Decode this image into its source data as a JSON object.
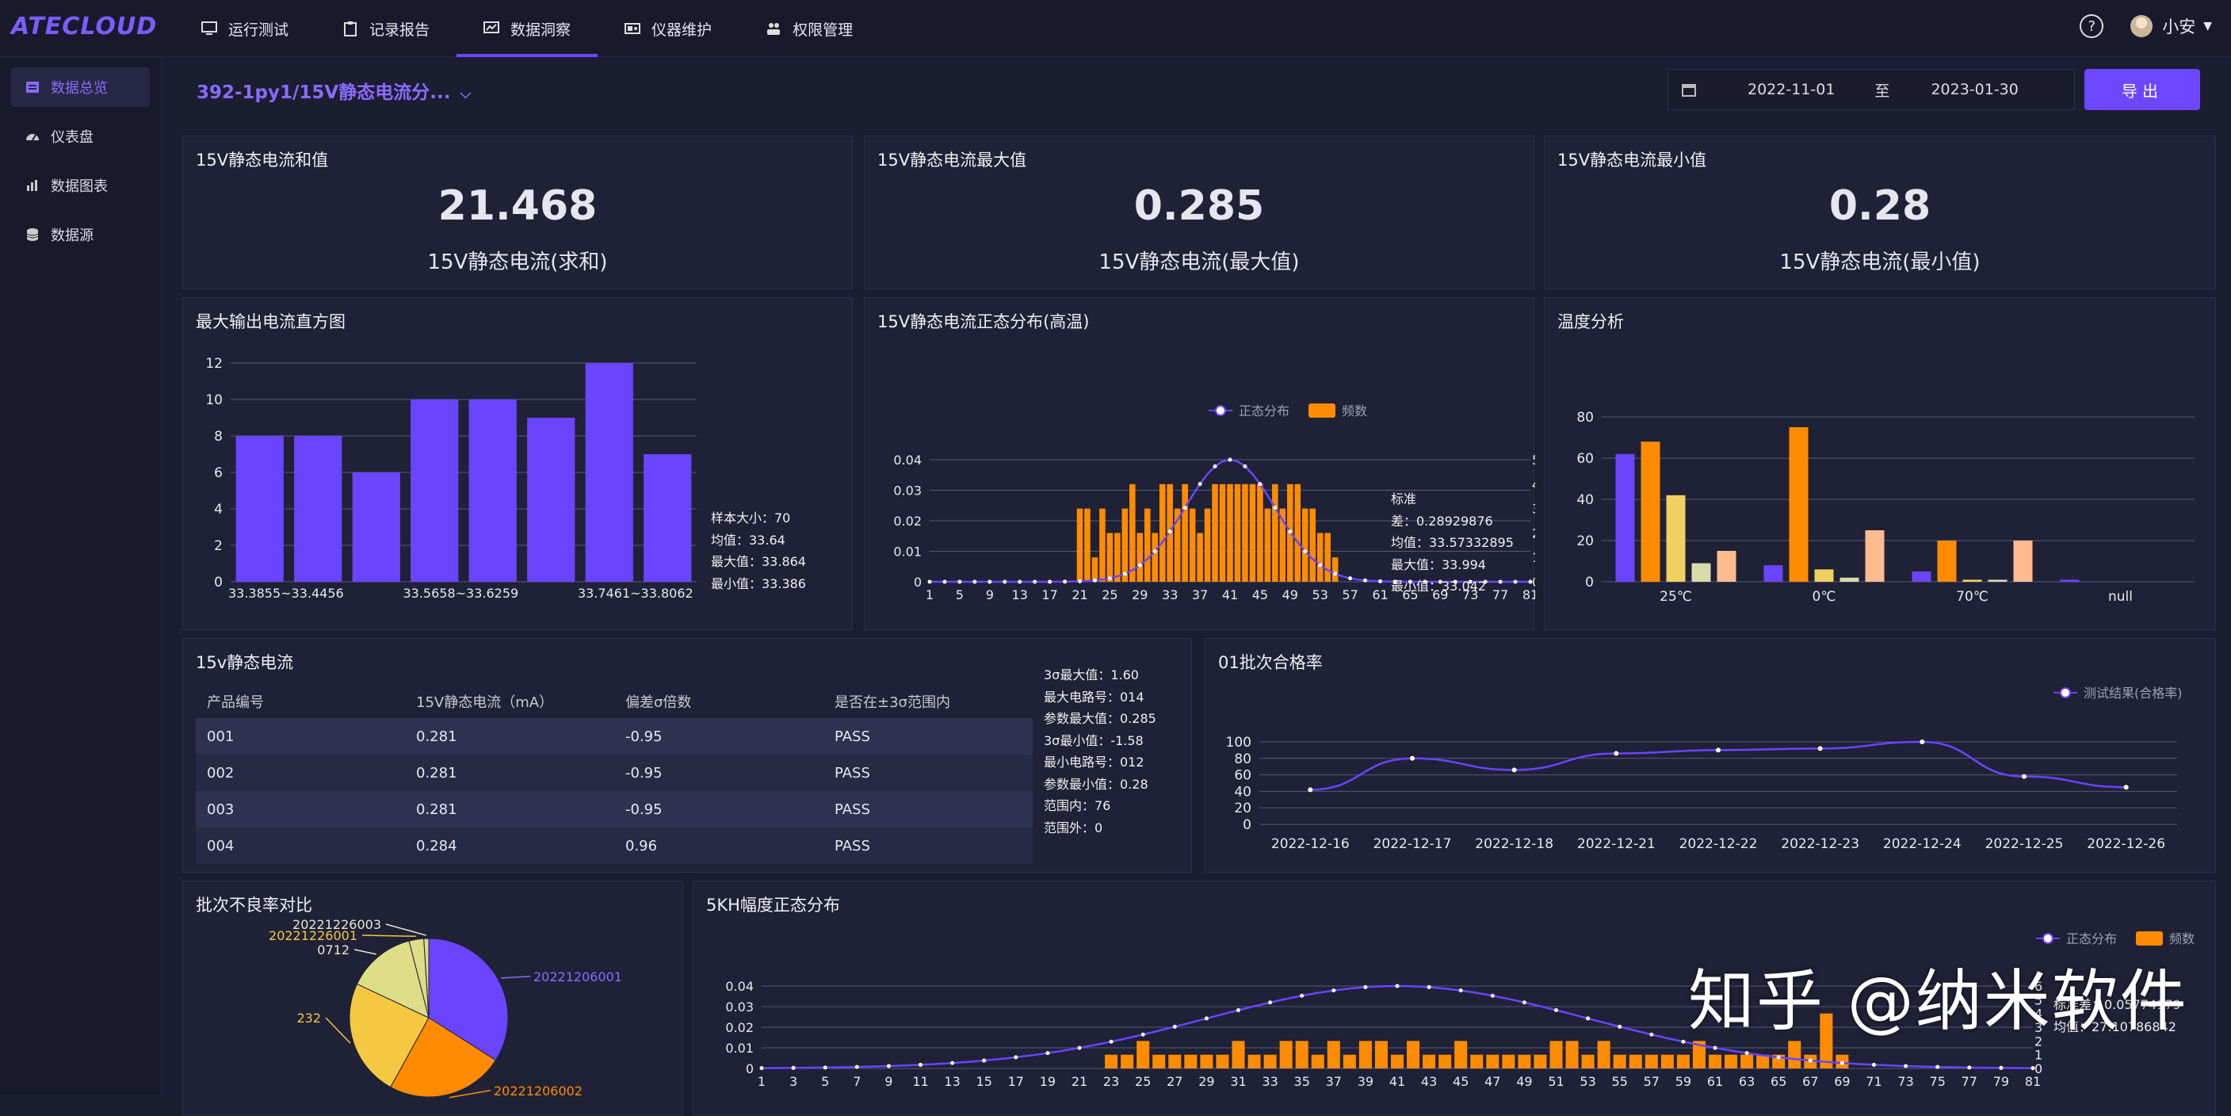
{
  "app": {
    "logo": "ATECLOUD"
  },
  "nav": [
    {
      "label": "运行测试",
      "icon": "monitor-icon",
      "active": false
    },
    {
      "label": "记录报告",
      "icon": "clipboard-icon",
      "active": false
    },
    {
      "label": "数据洞察",
      "icon": "chart-screen-icon",
      "active": true
    },
    {
      "label": "仪器维护",
      "icon": "instrument-icon",
      "active": false
    },
    {
      "label": "权限管理",
      "icon": "users-icon",
      "active": false
    }
  ],
  "user": {
    "name": "小安",
    "help": "?"
  },
  "sidebar": [
    {
      "label": "数据总览",
      "icon": "overview-icon",
      "active": true
    },
    {
      "label": "仪表盘",
      "icon": "dashboard-icon",
      "active": false
    },
    {
      "label": "数据图表",
      "icon": "bar-chart-icon",
      "active": false
    },
    {
      "label": "数据源",
      "icon": "database-icon",
      "active": false
    }
  ],
  "header": {
    "crumb": "392-1py1/15V静态电流分...",
    "date_from": "2022-11-01",
    "date_sep": "至",
    "date_to": "2023-01-30",
    "export": "导出"
  },
  "kpis": [
    {
      "title": "15V静态电流和值",
      "value": "21.468",
      "sub": "15V静态电流(求和)"
    },
    {
      "title": "15V静态电流最大值",
      "value": "0.285",
      "sub": "15V静态电流(最大值)"
    },
    {
      "title": "15V静态电流最小值",
      "value": "0.28",
      "sub": "15V静态电流(最小值)"
    }
  ],
  "hist_panel": {
    "title": "最大输出电流直方图",
    "stats": [
      "样本大小：70",
      "均值：33.64",
      "最大值：33.864",
      "最小值：33.386"
    ]
  },
  "normal_panel": {
    "title": "15V静态电流正态分布(高温)",
    "stats": [
      "标准",
      "差：0.28929876",
      "均值：33.57332895",
      "最大值：33.994",
      "最小值：33.042"
    ]
  },
  "temp_panel": {
    "title": "温度分析"
  },
  "table_panel": {
    "title": "15v静态电流",
    "columns": [
      "产品编号",
      "15V静态电流（mA）",
      "偏差σ倍数",
      "是否在±3σ范围内"
    ],
    "rows": [
      [
        "001",
        "0.281",
        "-0.95",
        "PASS"
      ],
      [
        "002",
        "0.281",
        "-0.95",
        "PASS"
      ],
      [
        "003",
        "0.281",
        "-0.95",
        "PASS"
      ],
      [
        "004",
        "0.284",
        "0.96",
        "PASS"
      ]
    ],
    "stats": [
      "3σ最大值：1.60",
      "最大电路号：014",
      "参数最大值：0.285",
      "3σ最小值：-1.58",
      "最小电路号：012",
      "参数最小值：0.28",
      "范围内：76",
      "范围外：0"
    ]
  },
  "pass_panel": {
    "title": "01批次合格率"
  },
  "pie_panel": {
    "title": "批次不良率对比"
  },
  "normal2_panel": {
    "title": "5KH幅度正态分布",
    "stats": [
      "标准差：0.05774179",
      "均值：27.10786842"
    ]
  },
  "watermark": "知乎 @纳米软件",
  "chart_data": [
    {
      "type": "bar",
      "title": "最大输出电流直方图",
      "categories": [
        "33.3855~33.4456",
        "",
        "",
        "33.5658~33.6259",
        "",
        "",
        "33.7461~33.8062",
        ""
      ],
      "values": [
        8,
        8,
        6,
        10,
        10,
        9,
        12,
        7
      ],
      "ylim": [
        0,
        12
      ],
      "yticks": [
        0,
        2,
        4,
        6,
        8,
        10,
        12
      ],
      "color": "#6a44ff"
    },
    {
      "type": "bar",
      "title": "15V静态电流正态分布(高温)",
      "legend": [
        "正态分布",
        "频数"
      ],
      "x_ticks": [
        "1",
        "5",
        "9",
        "13",
        "17",
        "21",
        "25",
        "29",
        "33",
        "37",
        "41",
        "45",
        "49",
        "53",
        "57",
        "61",
        "65",
        "69",
        "73",
        "77",
        "81"
      ],
      "x_count": 81,
      "bars": [
        [
          21,
          3
        ],
        [
          22,
          3
        ],
        [
          23,
          1
        ],
        [
          24,
          3
        ],
        [
          25,
          2
        ],
        [
          26,
          2
        ],
        [
          27,
          3
        ],
        [
          28,
          4
        ],
        [
          29,
          2
        ],
        [
          30,
          3
        ],
        [
          31,
          2
        ],
        [
          32,
          4
        ],
        [
          33,
          4
        ],
        [
          34,
          3
        ],
        [
          35,
          4
        ],
        [
          36,
          3
        ],
        [
          37,
          2
        ],
        [
          38,
          3
        ],
        [
          39,
          4
        ],
        [
          40,
          4
        ],
        [
          41,
          4
        ],
        [
          42,
          4
        ],
        [
          43,
          4
        ],
        [
          44,
          4
        ],
        [
          45,
          4
        ],
        [
          46,
          3
        ],
        [
          47,
          4
        ],
        [
          48,
          3
        ],
        [
          49,
          4
        ],
        [
          50,
          4
        ],
        [
          51,
          3
        ],
        [
          52,
          3
        ],
        [
          53,
          2
        ],
        [
          54,
          2
        ],
        [
          55,
          1
        ]
      ],
      "curve_peak": 0.04,
      "curve_center": 41,
      "curve_sigma": 6,
      "ylim_left": [
        0,
        0.04
      ],
      "yticks_left": [
        "0",
        "0.01",
        "0.02",
        "0.03",
        "0.04"
      ],
      "ylim_right": [
        0,
        5
      ],
      "yticks_right": [
        "0",
        "1",
        "2",
        "3",
        "4",
        "5"
      ],
      "colors": {
        "bar": "#ff8c00",
        "curve": "#6a44ff"
      }
    },
    {
      "type": "bar",
      "title": "温度分析",
      "categories": [
        "25℃",
        "0℃",
        "70℃",
        "null"
      ],
      "series": [
        {
          "values": [
            62,
            8,
            5,
            1
          ],
          "color": "#6a44ff"
        },
        {
          "values": [
            68,
            75,
            20,
            0
          ],
          "color": "#ff8c00"
        },
        {
          "values": [
            42,
            6,
            1,
            0
          ],
          "color": "#f0d060"
        },
        {
          "values": [
            9,
            2,
            1,
            0
          ],
          "color": "#d8dca8"
        },
        {
          "values": [
            15,
            25,
            20,
            0
          ],
          "color": "#ffbb90"
        }
      ],
      "ylim": [
        0,
        80
      ],
      "yticks": [
        0,
        20,
        40,
        60,
        80
      ]
    },
    {
      "type": "line",
      "title": "01批次合格率",
      "legend": [
        "测试结果(合格率)"
      ],
      "categories": [
        "2022-12-16",
        "2022-12-17",
        "2022-12-18",
        "2022-12-21",
        "2022-12-22",
        "2022-12-23",
        "2022-12-24",
        "2022-12-25",
        "2022-12-26"
      ],
      "values": [
        42,
        80,
        66,
        86,
        90,
        92,
        100,
        58,
        45
      ],
      "ylim": [
        0,
        100
      ],
      "yticks": [
        0,
        20,
        40,
        60,
        80,
        100
      ],
      "color": "#6a44ff"
    },
    {
      "type": "pie",
      "title": "批次不良率对比",
      "slices": [
        {
          "label": "20221206001",
          "value": 34,
          "color": "#6a44ff"
        },
        {
          "label": "20221206002",
          "value": 24,
          "color": "#ff8c00"
        },
        {
          "label": "232",
          "value": 24,
          "color": "#f5c842"
        },
        {
          "label": "0712",
          "value": 14,
          "color": "#dedd88"
        },
        {
          "label": "20221226001",
          "value": 3,
          "color": "#dedd88"
        },
        {
          "label": "20221226003",
          "value": 1,
          "color": "#dedd88"
        }
      ]
    },
    {
      "type": "bar",
      "title": "5KH幅度正态分布",
      "legend": [
        "正态分布",
        "频数"
      ],
      "x_ticks": [
        "1",
        "3",
        "5",
        "7",
        "9",
        "11",
        "13",
        "15",
        "17",
        "19",
        "21",
        "23",
        "25",
        "27",
        "29",
        "31",
        "33",
        "35",
        "37",
        "39",
        "41",
        "43",
        "45",
        "47",
        "49",
        "51",
        "53",
        "55",
        "57",
        "59",
        "61",
        "63",
        "65",
        "67",
        "69",
        "71",
        "73",
        "75",
        "77",
        "79",
        "81"
      ],
      "x_count": 81,
      "bars": [
        [
          23,
          1
        ],
        [
          24,
          1
        ],
        [
          25,
          2
        ],
        [
          26,
          1
        ],
        [
          27,
          1
        ],
        [
          28,
          1
        ],
        [
          29,
          1
        ],
        [
          30,
          1
        ],
        [
          31,
          2
        ],
        [
          32,
          1
        ],
        [
          33,
          1
        ],
        [
          34,
          2
        ],
        [
          35,
          2
        ],
        [
          36,
          1
        ],
        [
          37,
          2
        ],
        [
          38,
          1
        ],
        [
          39,
          2
        ],
        [
          40,
          2
        ],
        [
          41,
          1
        ],
        [
          42,
          2
        ],
        [
          43,
          1
        ],
        [
          44,
          1
        ],
        [
          45,
          2
        ],
        [
          46,
          1
        ],
        [
          47,
          1
        ],
        [
          48,
          1
        ],
        [
          49,
          1
        ],
        [
          50,
          1
        ],
        [
          51,
          2
        ],
        [
          52,
          2
        ],
        [
          53,
          1
        ],
        [
          54,
          2
        ],
        [
          55,
          1
        ],
        [
          56,
          1
        ],
        [
          57,
          1
        ],
        [
          58,
          1
        ],
        [
          59,
          1
        ],
        [
          60,
          2
        ],
        [
          61,
          1
        ],
        [
          62,
          1
        ],
        [
          63,
          1
        ],
        [
          64,
          1
        ],
        [
          65,
          1
        ],
        [
          66,
          2
        ],
        [
          67,
          1
        ],
        [
          68,
          4
        ],
        [
          69,
          1
        ]
      ],
      "curve_peak": 0.04,
      "curve_center": 41,
      "curve_sigma": 12,
      "ylim_left": [
        0,
        0.04
      ],
      "yticks_left": [
        "0",
        "0.01",
        "0.02",
        "0.03",
        "0.04"
      ],
      "ylim_right": [
        0,
        6
      ],
      "yticks_right": [
        "0",
        "1",
        "2",
        "3",
        "4",
        "5",
        "6"
      ],
      "colors": {
        "bar": "#ff8c00",
        "curve": "#6a44ff"
      }
    }
  ]
}
